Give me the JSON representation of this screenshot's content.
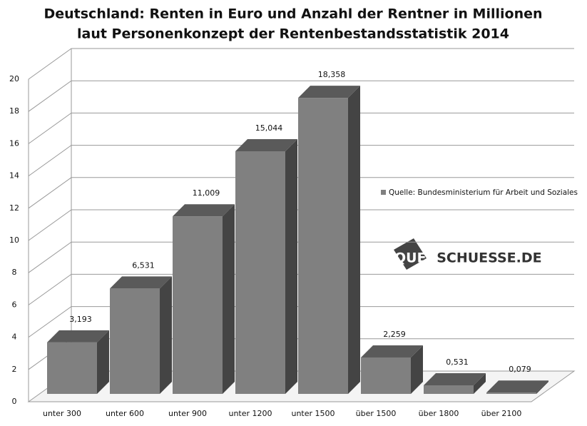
{
  "chart_data": {
    "type": "bar3d",
    "title": [
      "Deutschland: Renten in Euro und Anzahl der Rentner in Millionen",
      "laut Personenkonzept der Rentenbestandsstatistik 2014"
    ],
    "categories": [
      "unter 300",
      "unter 600",
      "unter 900",
      "unter 1200",
      "unter 1500",
      "über 1500",
      "über 1800",
      "über 2100"
    ],
    "series": [
      {
        "name": "Quelle: Bundesministerium für Arbeit und Soziales",
        "color": "#808080",
        "values": [
          3.193,
          6.531,
          11.009,
          15.044,
          18.358,
          2.259,
          0.531,
          0.079
        ],
        "value_labels": [
          "3,193",
          "6,531",
          "11,009",
          "15,044",
          "18,358",
          "2,259",
          "0,531",
          "0,079"
        ]
      }
    ],
    "ylim": [
      0,
      20
    ],
    "yticks": [
      0,
      2,
      4,
      6,
      8,
      10,
      12,
      14,
      16,
      18,
      20
    ],
    "grid": true,
    "legend": "right",
    "watermark": [
      "QUER",
      "SCHUESSE.DE"
    ]
  }
}
